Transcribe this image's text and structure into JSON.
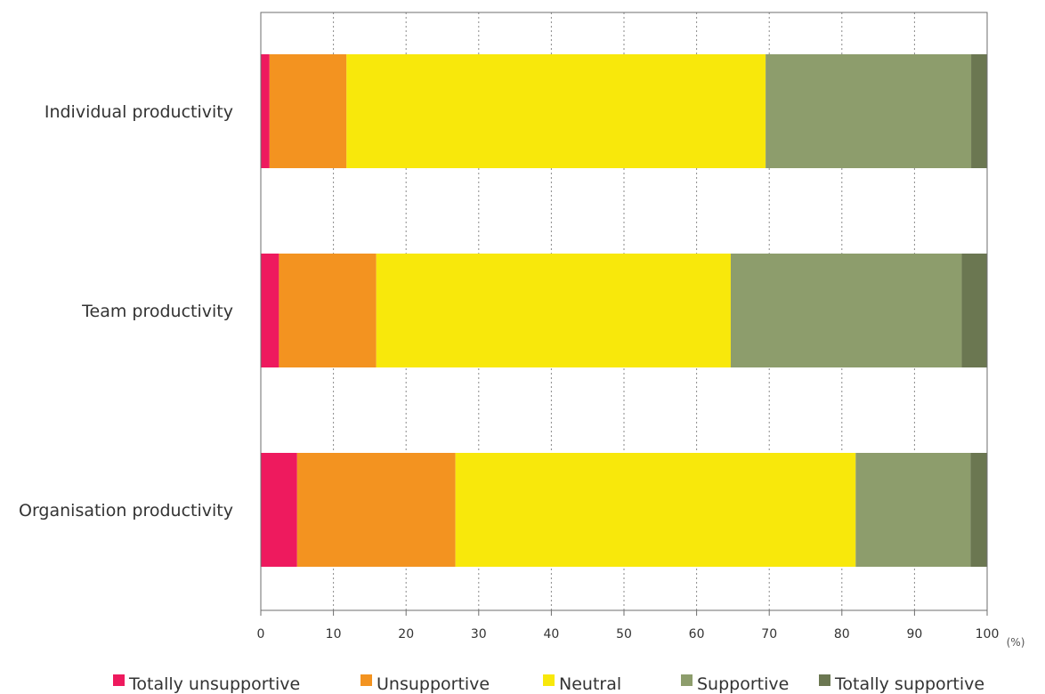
{
  "chart_data": {
    "type": "bar",
    "orientation": "horizontal",
    "stacked": true,
    "categories": [
      "Individual productivity",
      "Team productivity",
      "Organisation productivity"
    ],
    "series": [
      {
        "name": "Totally unsupportive",
        "color": "#ee1a5e",
        "values": [
          1.2,
          2.5,
          5
        ]
      },
      {
        "name": "Unsupportive",
        "color": "#f39320",
        "values": [
          10.6,
          13.4,
          21.8
        ]
      },
      {
        "name": "Neutral",
        "color": "#f8e80b",
        "values": [
          57.7,
          48.8,
          55.1
        ]
      },
      {
        "name": "Supportive",
        "color": "#8d9d6c",
        "values": [
          28.3,
          31.8,
          15.8
        ]
      },
      {
        "name": "Totally supportive",
        "color": "#6b7751",
        "values": [
          2.2,
          3.5,
          2.3
        ]
      }
    ],
    "xlim": [
      0,
      100
    ],
    "xticks": [
      "0",
      "10",
      "20",
      "30",
      "40",
      "50",
      "60",
      "70",
      "80",
      "90",
      "100"
    ],
    "xunit": "(%)",
    "grid": "vertical dotted",
    "legend_position": "bottom"
  }
}
